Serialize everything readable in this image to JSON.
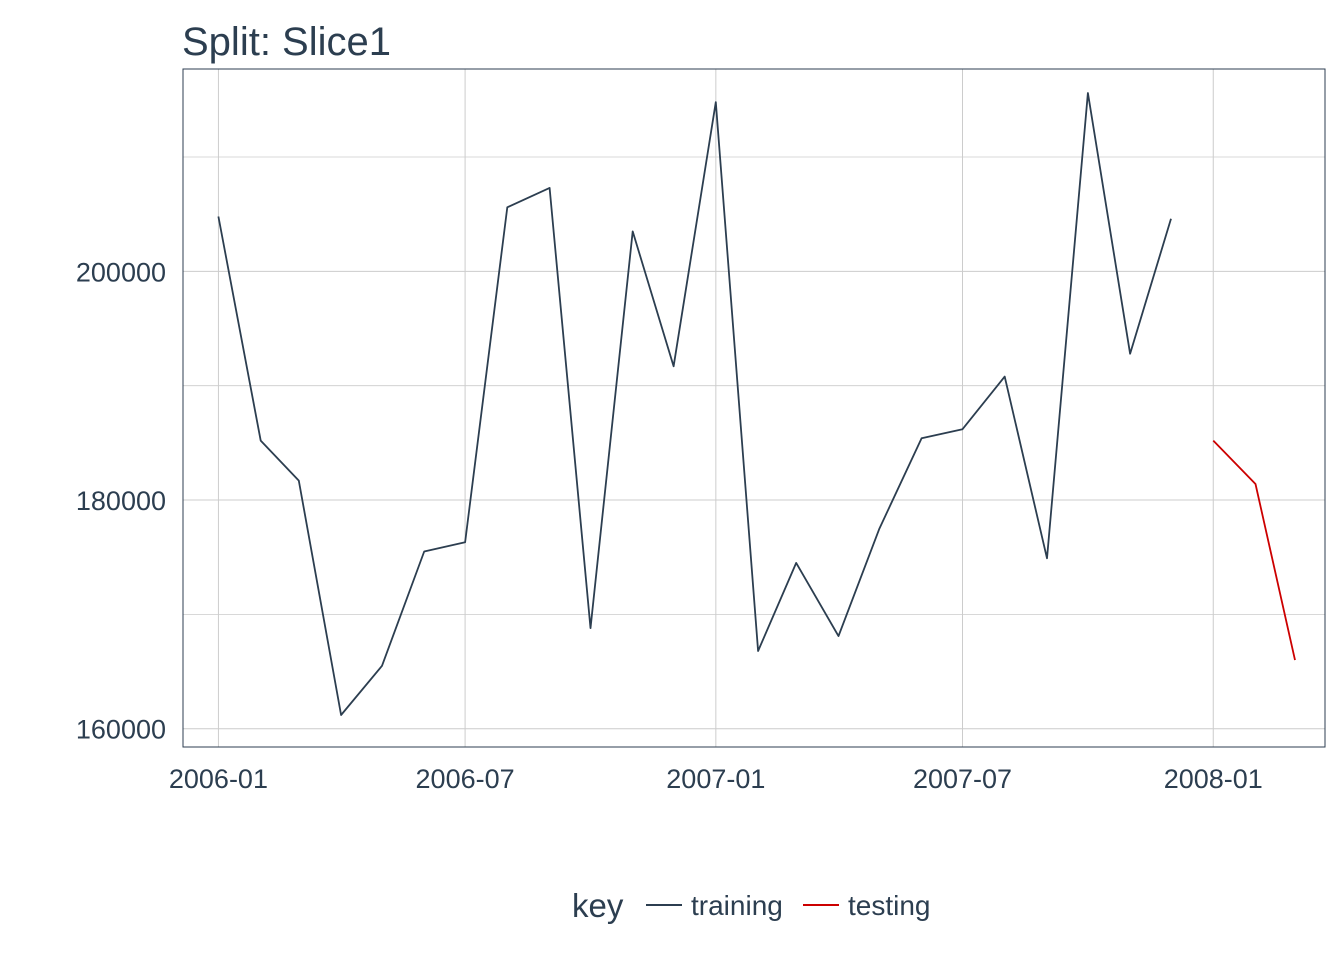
{
  "chart_data": {
    "type": "line",
    "title": "Split: Slice1",
    "xlabel": "",
    "ylabel": "",
    "x_ticks": [
      "2006-01",
      "2006-07",
      "2007-01",
      "2007-07",
      "2008-01"
    ],
    "x_tick_dates": [
      "2006-01-01",
      "2006-07-01",
      "2007-01-01",
      "2007-07-01",
      "2008-01-01"
    ],
    "y_ticks": [
      160000,
      180000,
      200000
    ],
    "ylim": [
      158400,
      217700
    ],
    "xlim": [
      "2005-12-06",
      "2008-03-23"
    ],
    "grid": true,
    "legend": {
      "title": "key",
      "position": "bottom"
    },
    "series": [
      {
        "name": "training",
        "color": "#2c3e50",
        "x": [
          "2006-01-01",
          "2006-02-01",
          "2006-03-01",
          "2006-04-01",
          "2006-05-01",
          "2006-06-01",
          "2006-07-01",
          "2006-08-01",
          "2006-09-01",
          "2006-10-01",
          "2006-11-01",
          "2006-12-01",
          "2007-01-01",
          "2007-02-01",
          "2007-03-01",
          "2007-04-01",
          "2007-05-01",
          "2007-06-01",
          "2007-07-01",
          "2007-08-01",
          "2007-09-01",
          "2007-10-01",
          "2007-11-01",
          "2007-12-01"
        ],
        "values": [
          204800,
          185200,
          181700,
          161200,
          165500,
          175500,
          176300,
          205600,
          207300,
          168800,
          203500,
          191700,
          214800,
          166800,
          174500,
          168100,
          177500,
          185400,
          186200,
          190800,
          174900,
          215600,
          192800,
          204600
        ]
      },
      {
        "name": "testing",
        "color": "#cc0000",
        "x": [
          "2008-01-01",
          "2008-02-01",
          "2008-03-01"
        ],
        "values": [
          185200,
          181400,
          166000
        ]
      }
    ]
  }
}
